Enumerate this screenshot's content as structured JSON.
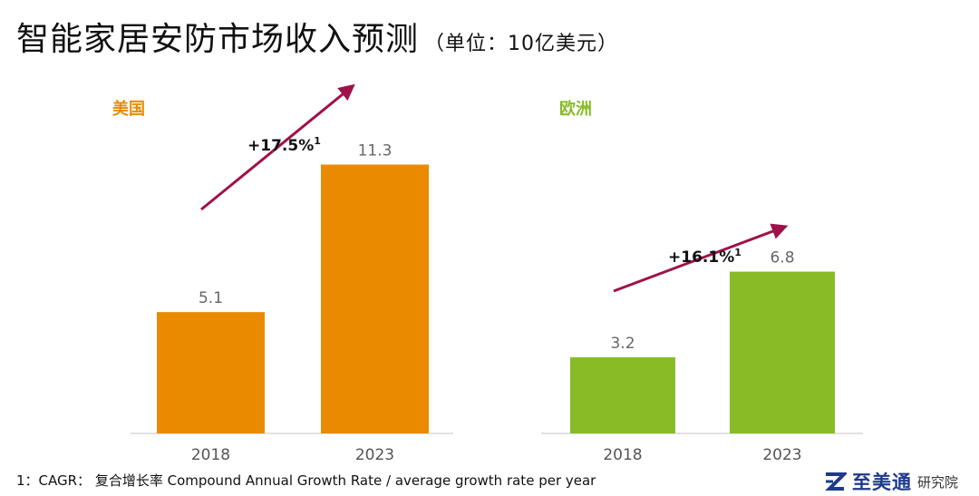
{
  "title": "智能家居安防市场收入预测",
  "unit": "（单位：10亿美元）",
  "chart_data": [
    {
      "type": "bar",
      "title": "美国",
      "categories": [
        "2018",
        "2023"
      ],
      "values": [
        5.1,
        11.3
      ],
      "ylim": [
        0,
        12.5
      ],
      "color": "#E98A00",
      "cagr": "+17.5%",
      "cagr_note": "1"
    },
    {
      "type": "bar",
      "title": "欧洲",
      "categories": [
        "2018",
        "2023"
      ],
      "values": [
        3.2,
        6.8
      ],
      "ylim": [
        0,
        12.5
      ],
      "color": "#88BC26",
      "cagr": "+16.1%",
      "cagr_note": "1"
    }
  ],
  "colors": {
    "arrow": "#A0114A",
    "axis": "#d9d9d9",
    "value_label": "#666666",
    "tick_label": "#555555"
  },
  "footnote": "1：CAGR： 复合增长率 Compound Annual Growth Rate / average growth rate per year",
  "logo": {
    "icon": "z-logo-icon",
    "name": "至美通",
    "sub": "研究院"
  }
}
